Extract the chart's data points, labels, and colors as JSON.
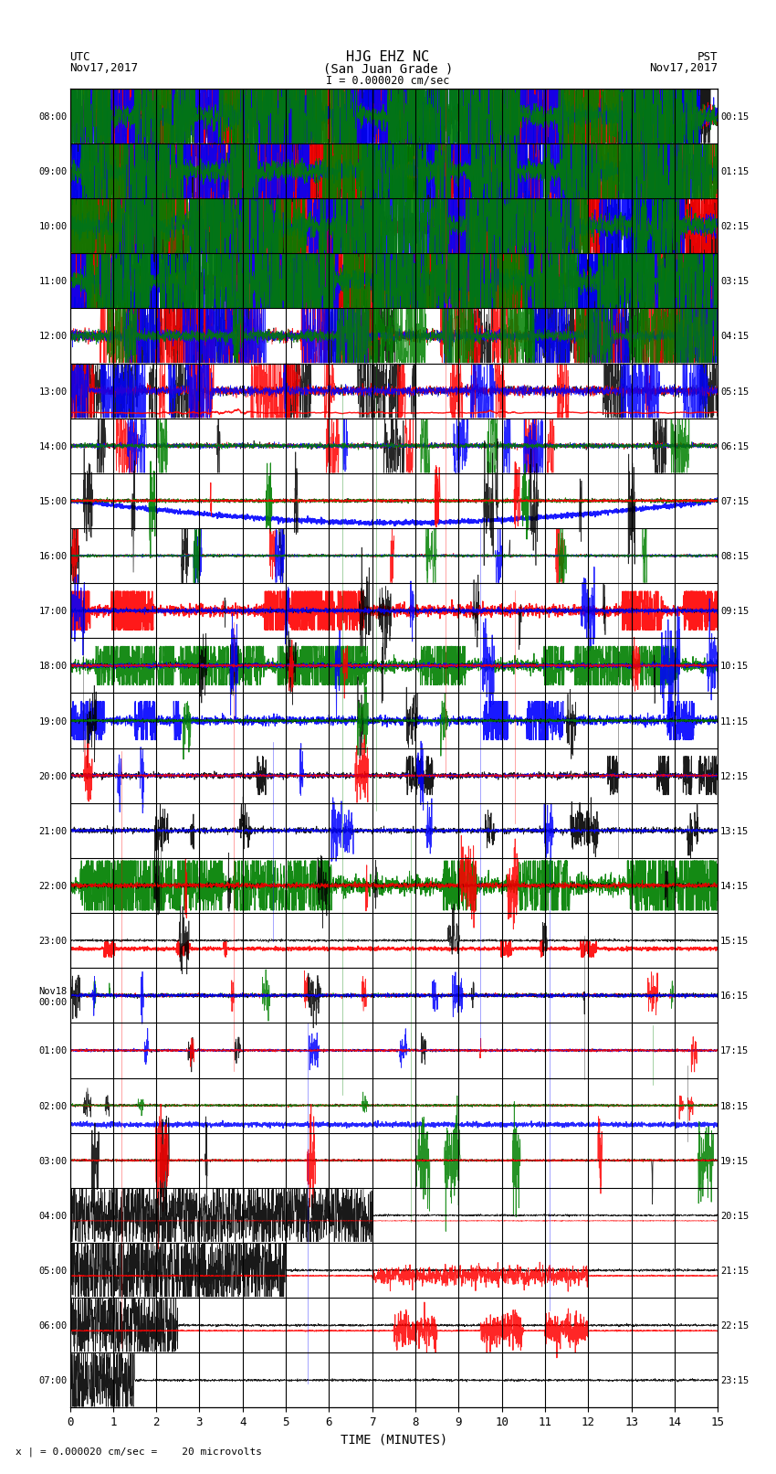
{
  "title_line1": "HJG EHZ NC",
  "title_line2": "(San Juan Grade )",
  "scale_label": "I = 0.000020 cm/sec",
  "utc_label": "UTC\nNov17,2017",
  "pst_label": "PST\nNov17,2017",
  "bottom_label": "x | = 0.000020 cm/sec =    20 microvolts",
  "xlabel": "TIME (MINUTES)",
  "left_times": [
    "08:00",
    "09:00",
    "10:00",
    "11:00",
    "12:00",
    "13:00",
    "14:00",
    "15:00",
    "16:00",
    "17:00",
    "18:00",
    "19:00",
    "20:00",
    "21:00",
    "22:00",
    "23:00",
    "Nov18\n00:00",
    "01:00",
    "02:00",
    "03:00",
    "04:00",
    "05:00",
    "06:00",
    "07:00"
  ],
  "right_times": [
    "00:15",
    "01:15",
    "02:15",
    "03:15",
    "04:15",
    "05:15",
    "06:15",
    "07:15",
    "08:15",
    "09:15",
    "10:15",
    "11:15",
    "12:15",
    "13:15",
    "14:15",
    "15:15",
    "16:15",
    "17:15",
    "18:15",
    "19:15",
    "20:15",
    "21:15",
    "22:15",
    "23:15"
  ],
  "n_rows": 24,
  "xlim": [
    0,
    15
  ],
  "background": "white",
  "grid_color": "#555555",
  "colors": [
    "black",
    "red",
    "blue",
    "green"
  ]
}
